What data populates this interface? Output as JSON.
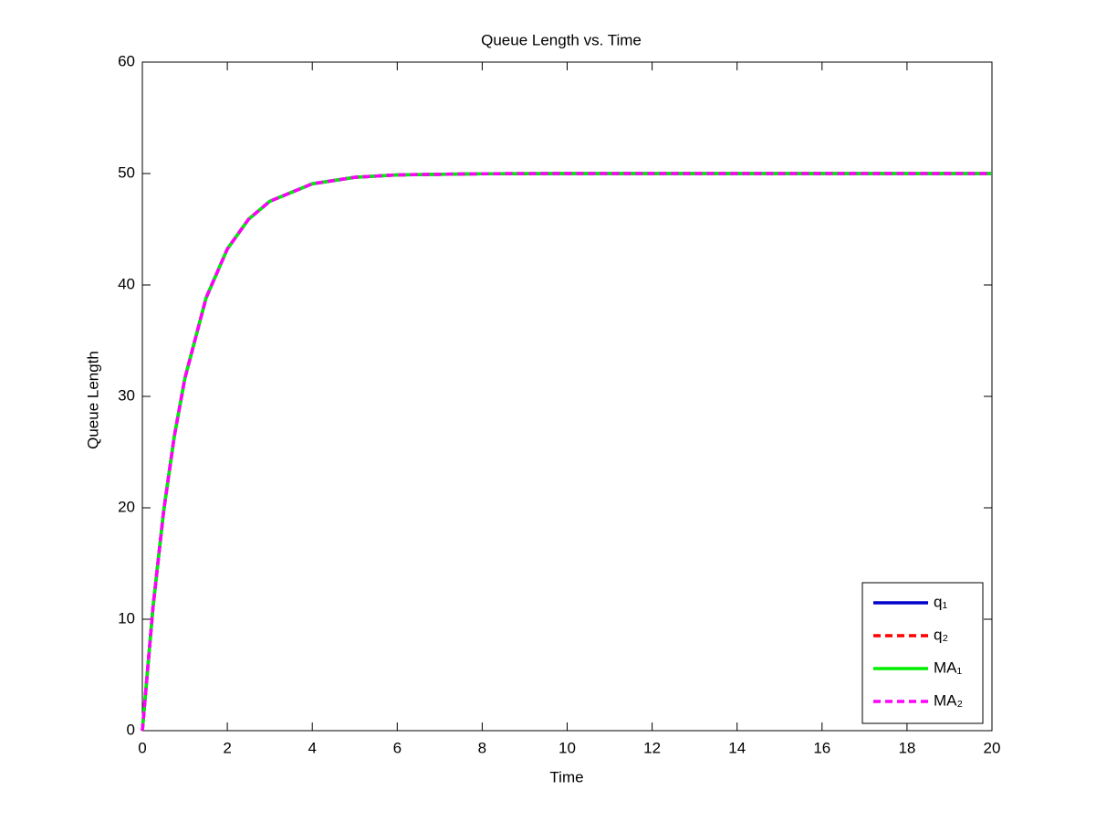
{
  "chart_data": {
    "type": "line",
    "title": "Queue Length vs. Time",
    "x_label": "Time",
    "y_label": "Queue Length",
    "x": [
      0,
      0.25,
      0.5,
      0.75,
      1,
      1.5,
      2,
      2.5,
      3,
      4,
      5,
      6,
      8,
      10,
      12,
      14,
      16,
      18,
      20
    ],
    "series": [
      {
        "name": "q₁",
        "color": "#0000cc",
        "linestyle": "solid",
        "values": [
          0,
          11.06,
          19.67,
          26.38,
          31.61,
          38.84,
          43.23,
          45.9,
          47.51,
          49.08,
          49.66,
          49.88,
          49.98,
          50,
          50,
          50,
          50,
          50,
          50
        ]
      },
      {
        "name": "q₂",
        "color": "#ff0000",
        "linestyle": "dashed",
        "values": [
          0,
          11.06,
          19.67,
          26.38,
          31.61,
          38.84,
          43.23,
          45.9,
          47.51,
          49.08,
          49.66,
          49.88,
          49.98,
          50,
          50,
          50,
          50,
          50,
          50
        ]
      },
      {
        "name": "MA₁",
        "color": "#00ee00",
        "linestyle": "solid",
        "values": [
          0,
          11.06,
          19.67,
          26.38,
          31.61,
          38.84,
          43.23,
          45.9,
          47.51,
          49.08,
          49.66,
          49.88,
          49.98,
          50,
          50,
          50,
          50,
          50,
          50
        ]
      },
      {
        "name": "MA₂",
        "color": "#ff00ff",
        "linestyle": "dashed",
        "values": [
          0,
          11.06,
          19.67,
          26.38,
          31.61,
          38.84,
          43.23,
          45.9,
          47.51,
          49.08,
          49.66,
          49.88,
          49.98,
          50,
          50,
          50,
          50,
          50,
          50
        ]
      }
    ],
    "xlim": [
      0,
      20
    ],
    "xticks": [
      0,
      2,
      4,
      6,
      8,
      10,
      12,
      14,
      16,
      18,
      20
    ],
    "ylim": [
      0,
      60
    ],
    "yticks": [
      0,
      10,
      20,
      30,
      40,
      50,
      60
    ],
    "grid": false,
    "legend": "lower-right"
  }
}
